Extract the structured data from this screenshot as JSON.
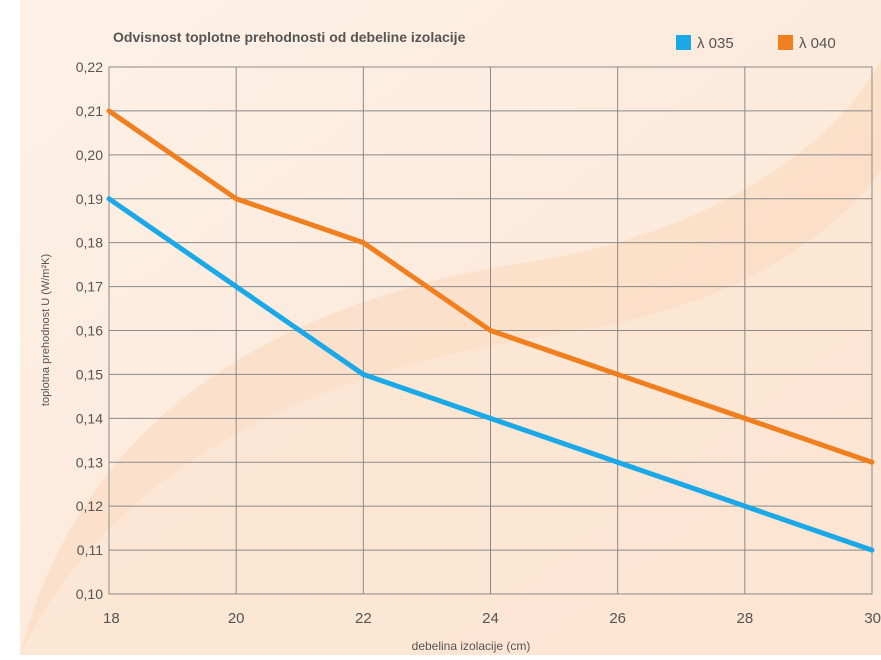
{
  "chart_data": {
    "type": "line",
    "title": "Odvisnost toplotne prehodnosti od debeline izolacije",
    "xlabel": "debelina izolacije (cm)",
    "ylabel": "toplotna prehodnost U (W/m²K)",
    "x": [
      18,
      20,
      22,
      24,
      26,
      28,
      30
    ],
    "x_ticks": [
      "18",
      "20",
      "22",
      "24",
      "26",
      "28",
      "30"
    ],
    "xlim": [
      18,
      30
    ],
    "y_ticks": [
      "0,10",
      "0,11",
      "0,12",
      "0,13",
      "0,14",
      "0,15",
      "0,16",
      "0,17",
      "0,18",
      "0,19",
      "0,20",
      "0,21",
      "0,22"
    ],
    "ylim": [
      0.1,
      0.22
    ],
    "grid": true,
    "legend_position": "top-right",
    "series": [
      {
        "name": "λ 035",
        "color": "#1aa9e6",
        "values": [
          0.19,
          0.17,
          0.15,
          0.14,
          0.13,
          0.12,
          0.11
        ]
      },
      {
        "name": "λ 040",
        "color": "#f07f1f",
        "values": [
          0.21,
          0.19,
          0.18,
          0.16,
          0.15,
          0.14,
          0.13
        ]
      }
    ],
    "colors": {
      "background_light": "#fdf0e6",
      "background_dark": "#f9d9c0",
      "grid": "#8a8a8a",
      "text": "#555555"
    }
  }
}
